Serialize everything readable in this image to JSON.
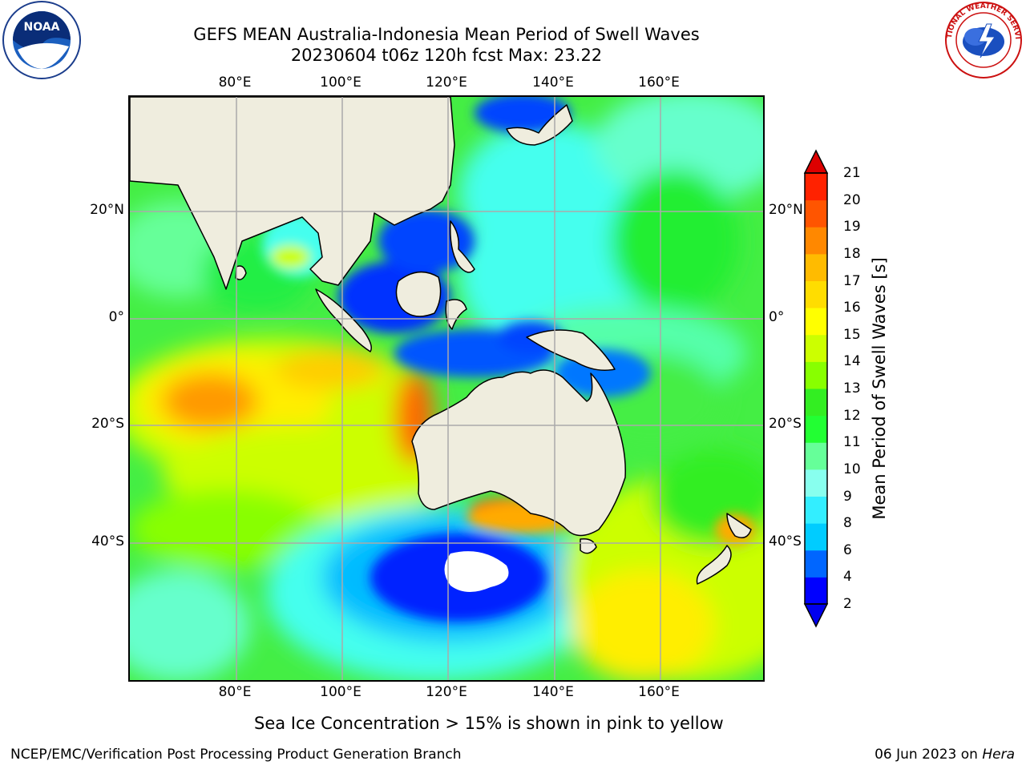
{
  "title": {
    "line1": "GEFS MEAN Australia-Indonesia Mean Period of Swell Waves",
    "line2": "20230604 t06z 120h fcst   Max: 23.22"
  },
  "axes": {
    "lon_ticks": [
      "80°E",
      "100°E",
      "120°E",
      "140°E",
      "160°E"
    ],
    "lat_ticks": [
      "20°N",
      "0°",
      "20°S",
      "40°S"
    ]
  },
  "colorbar": {
    "label": "Mean Period of Swell Waves [s]",
    "ticks": [
      "2",
      "4",
      "6",
      "8",
      "9",
      "10",
      "11",
      "12",
      "13",
      "14",
      "15",
      "16",
      "17",
      "18",
      "19",
      "20",
      "21"
    ],
    "colors": [
      "#0000ff",
      "#0066ff",
      "#00ccff",
      "#33eeff",
      "#88ffee",
      "#66ff99",
      "#22ff33",
      "#33ee22",
      "#88ff00",
      "#ccff00",
      "#ffff00",
      "#ffdd00",
      "#ffbb00",
      "#ff8800",
      "#ff5500",
      "#ff2200",
      "#dd0000"
    ]
  },
  "note": "Sea Ice Concentration > 15% is shown in pink to yellow",
  "footer": {
    "left": "NCEP/EMC/Verification Post Processing Product Generation Branch",
    "date": "06 Jun 2023 on",
    "host": "Hera"
  },
  "logos": {
    "noaa_text": "NOAA",
    "nws_text": "NATIONAL WEATHER SERVICE"
  }
}
